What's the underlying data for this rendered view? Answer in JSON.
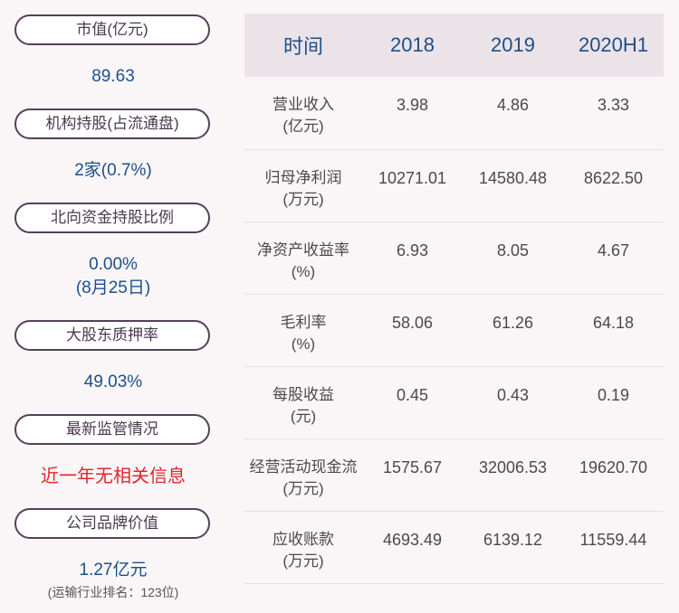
{
  "left": {
    "items": [
      {
        "label": "市值(亿元)",
        "value": "89.63"
      },
      {
        "label": "机构持股(占流通盘)",
        "value": "2家(0.7%)"
      },
      {
        "label": "北向资金持股比例",
        "value": "0.00%",
        "value2": "(8月25日)"
      },
      {
        "label": "大股东质押率",
        "value": "49.03%"
      },
      {
        "label": "最新监管情况",
        "value": "近一年无相关信息",
        "value_color": "#e0252b"
      },
      {
        "label": "公司品牌价值",
        "value": "1.27亿元",
        "note": "(运输行业排名：123位)"
      }
    ]
  },
  "table": {
    "headers": [
      "时间",
      "2018",
      "2019",
      "2020H1"
    ],
    "rows": [
      {
        "label1": "营业收入",
        "label2": "(亿元)",
        "values": [
          "3.98",
          "4.86",
          "3.33"
        ]
      },
      {
        "label1": "归母净利润",
        "label2": "(万元)",
        "values": [
          "10271.01",
          "14580.48",
          "8622.50"
        ]
      },
      {
        "label1": "净资产收益率",
        "label2": "(%)",
        "values": [
          "6.93",
          "8.05",
          "4.67"
        ]
      },
      {
        "label1": "毛利率",
        "label2": "(%)",
        "values": [
          "58.06",
          "61.26",
          "64.18"
        ]
      },
      {
        "label1": "每股收益",
        "label2": "(元)",
        "values": [
          "0.45",
          "0.43",
          "0.19"
        ]
      },
      {
        "label1": "经营活动现金流",
        "label2": "(万元)",
        "values": [
          "1575.67",
          "32006.53",
          "19620.70"
        ]
      },
      {
        "label1": "应收账款",
        "label2": "(万元)",
        "values": [
          "4693.49",
          "6139.12",
          "11559.44"
        ]
      }
    ]
  },
  "colors": {
    "accent": "#1d4f8c",
    "alert": "#e0252b",
    "pill_border": "#55405a"
  }
}
